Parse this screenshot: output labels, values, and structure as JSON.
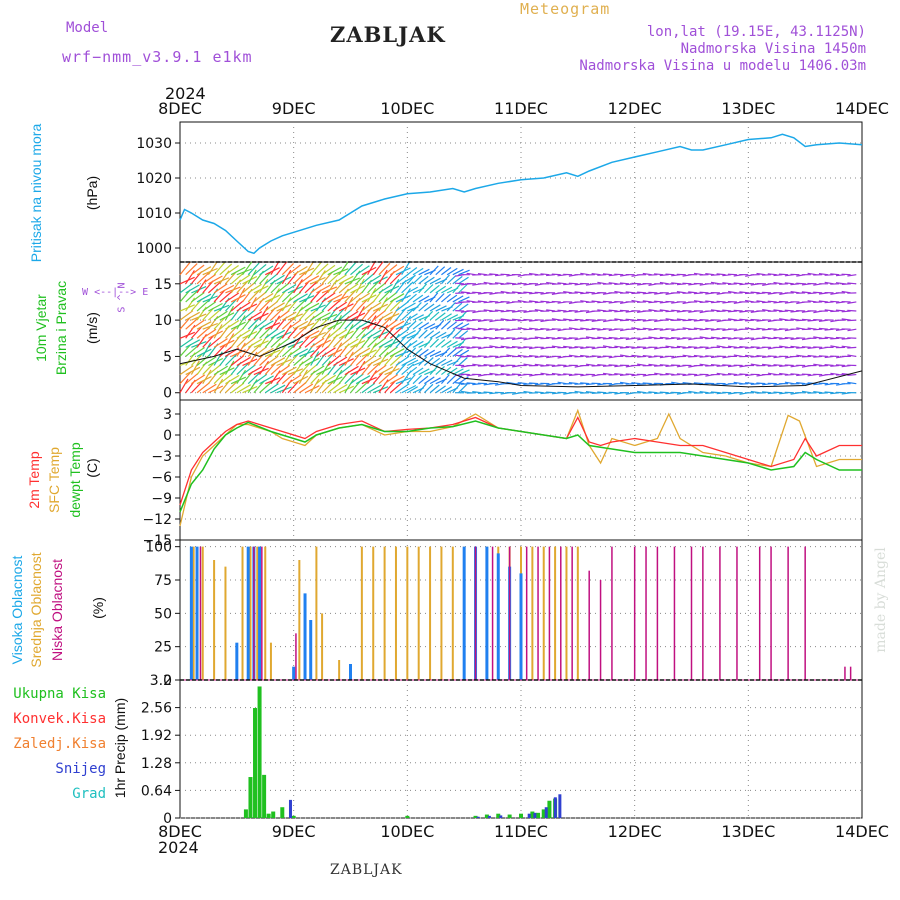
{
  "header": {
    "model_label": "Model",
    "model_name": "wrf−nmm_v3.9.1  e1km",
    "title": "ZABLJAK",
    "meteogram_label": "Meteogram",
    "location": "lon,lat (19.15E, 43.1125N)",
    "altitude": "Nadmorska Visina 1450m",
    "model_altitude": "Nadmorska Visina u modelu 1406.03m",
    "year_top": "2024",
    "year_bottom": "2024",
    "footer_station": "ZABLJAK",
    "watermark": "made by Angel"
  },
  "colors": {
    "pressure": "#1ca8e8",
    "t2m": "#ff3030",
    "tsfc": "#e0a830",
    "dewpt": "#20c020",
    "high_cloud": "#2080f0",
    "mid_cloud": "#e0a830",
    "low_cloud": "#c01080",
    "precip_total": "#20c020",
    "precip_conv": "#ff3030",
    "precip_frz": "#f08030",
    "snow": "#3040d0",
    "graupel": "#20c0c0"
  },
  "chart_data": [
    {
      "type": "line",
      "panel": "pressure",
      "ylabel_main": "Pritisak na nivou mora",
      "ylabel_unit": "(hPa)",
      "x_labels": [
        "8DEC",
        "9DEC",
        "10DEC",
        "11DEC",
        "12DEC",
        "13DEC",
        "14DEC"
      ],
      "yticks": [
        "1000",
        "1010",
        "1020",
        "1030"
      ],
      "ylim": [
        996,
        1036
      ],
      "grid": true,
      "series": [
        {
          "x": [
            0,
            0.04,
            0.1,
            0.2,
            0.3,
            0.4,
            0.5,
            0.6,
            0.65,
            0.7,
            0.8,
            0.9,
            1.0,
            1.2,
            1.4,
            1.6,
            1.8,
            2.0,
            2.2,
            2.4,
            2.5,
            2.6,
            2.8,
            3.0,
            3.2,
            3.4,
            3.5,
            3.6,
            3.8,
            4.0,
            4.2,
            4.4,
            4.5,
            4.6,
            4.8,
            5.0,
            5.2,
            5.3,
            5.4,
            5.5,
            5.6,
            5.8,
            6.0
          ],
          "values": [
            1008,
            1011,
            1010,
            1008,
            1007,
            1005,
            1002,
            999,
            998.5,
            1000,
            1002,
            1003.5,
            1004.5,
            1006.5,
            1008,
            1012,
            1014,
            1015.5,
            1016,
            1017,
            1016,
            1017,
            1018.5,
            1019.5,
            1020,
            1021.5,
            1020.5,
            1022,
            1024.5,
            1026,
            1027.5,
            1029,
            1028,
            1028,
            1029.5,
            1031,
            1031.5,
            1032.5,
            1031.5,
            1029,
            1029.5,
            1030,
            1029.5
          ]
        }
      ]
    },
    {
      "type": "line",
      "panel": "wind",
      "ylabel_main": "10m Vjetar",
      "ylabel_sub": "Brzina i Pravac",
      "ylabel_unit": "(m/s)",
      "direction_legend": [
        "W",
        "<--|-->",
        "E",
        "N",
        "^",
        "S"
      ],
      "yticks": [
        "0",
        "5",
        "10",
        "15"
      ],
      "ylim": [
        -1,
        18
      ],
      "grid": true,
      "series": [
        {
          "name": "speed",
          "x": [
            0,
            0.3,
            0.5,
            0.7,
            1.0,
            1.2,
            1.4,
            1.6,
            1.8,
            2.0,
            2.2,
            2.5,
            2.8,
            3.0,
            3.5,
            4.0,
            4.5,
            5.0,
            5.5,
            6.0
          ],
          "values": [
            4,
            5,
            6,
            5,
            7,
            9,
            10,
            10,
            9,
            6,
            4,
            2,
            1.5,
            1,
            0.8,
            1,
            1.2,
            0.8,
            1,
            3
          ]
        }
      ]
    },
    {
      "type": "line",
      "panel": "temperature",
      "ylabel_main": "2m Temp",
      "ylabel_sub": "SFC Temp",
      "ylabel_sub2": "dewpt Temp",
      "ylabel_unit": "(C)",
      "yticks": [
        "3",
        "0",
        "−3",
        "−6",
        "−9",
        "−12",
        "−15"
      ],
      "ylim": [
        -15,
        5
      ],
      "grid": true,
      "series": [
        {
          "name": "2m Temp",
          "x": [
            0,
            0.1,
            0.2,
            0.3,
            0.4,
            0.5,
            0.6,
            0.8,
            0.9,
            1.0,
            1.1,
            1.2,
            1.4,
            1.6,
            1.8,
            2.0,
            2.2,
            2.4,
            2.6,
            2.8,
            3.0,
            3.2,
            3.4,
            3.5,
            3.6,
            3.7,
            3.8,
            4.0,
            4.2,
            4.4,
            4.6,
            4.8,
            5.0,
            5.2,
            5.4,
            5.5,
            5.6,
            5.8,
            6.0
          ],
          "values": [
            -10,
            -5,
            -2.5,
            -1,
            0.5,
            1.5,
            2,
            1,
            0.5,
            0,
            -0.5,
            0.5,
            1.5,
            2,
            0.5,
            0.8,
            1,
            1.5,
            2.5,
            1,
            0.5,
            0,
            -0.5,
            2.5,
            -1,
            -1.5,
            -1,
            -0.5,
            -1,
            -1.5,
            -1.5,
            -2.5,
            -3.5,
            -4.5,
            -3.5,
            -0.5,
            -3,
            -1.5,
            -1.5
          ]
        },
        {
          "name": "SFC Temp",
          "x": [
            0,
            0.1,
            0.2,
            0.3,
            0.4,
            0.5,
            0.6,
            0.8,
            0.9,
            1.0,
            1.1,
            1.2,
            1.4,
            1.6,
            1.8,
            2.0,
            2.2,
            2.4,
            2.6,
            2.8,
            3.0,
            3.2,
            3.4,
            3.5,
            3.6,
            3.7,
            3.8,
            4.0,
            4.2,
            4.3,
            4.4,
            4.6,
            4.8,
            5.0,
            5.2,
            5.35,
            5.45,
            5.6,
            5.8,
            6.0
          ],
          "values": [
            -13,
            -6,
            -3,
            -1.5,
            0,
            1.5,
            1.5,
            0.5,
            -0.5,
            -1,
            -1.5,
            0,
            1,
            1.5,
            0,
            0.5,
            0.5,
            1.2,
            3,
            1,
            0.5,
            0,
            -0.5,
            3.5,
            -1.5,
            -4,
            -0.5,
            -1.5,
            -0.5,
            3,
            -0.5,
            -2.5,
            -3,
            -4,
            -4.5,
            2.8,
            2,
            -4.5,
            -3.5,
            -3.5
          ]
        },
        {
          "name": "dewpt Temp",
          "x": [
            0,
            0.1,
            0.2,
            0.3,
            0.4,
            0.5,
            0.6,
            0.8,
            0.9,
            1.0,
            1.1,
            1.2,
            1.4,
            1.6,
            1.8,
            2.0,
            2.2,
            2.4,
            2.6,
            2.8,
            3.0,
            3.2,
            3.4,
            3.5,
            3.6,
            3.8,
            4.0,
            4.2,
            4.4,
            4.6,
            4.8,
            5.0,
            5.2,
            5.4,
            5.5,
            5.6,
            5.8,
            6.0
          ],
          "values": [
            -11,
            -7,
            -5,
            -2,
            0,
            1,
            1.8,
            0.5,
            0,
            -0.5,
            -1,
            0,
            1,
            1.5,
            0.5,
            0.5,
            1,
            1.2,
            2,
            1,
            0.5,
            0,
            -0.5,
            0,
            -1.5,
            -2,
            -2.5,
            -2.5,
            -2.5,
            -3,
            -3.5,
            -4,
            -5,
            -4.5,
            -2.5,
            -3.5,
            -5,
            -5
          ]
        }
      ]
    },
    {
      "type": "bar",
      "panel": "clouds",
      "ylabel_main": "Visoka Oblacnost",
      "ylabel_sub": "Srednja Oblacnost",
      "ylabel_sub2": "Niska  Oblacnost",
      "ylabel_unit": "(%)",
      "yticks": [
        "0",
        "25",
        "50",
        "75",
        "100"
      ],
      "ylim": [
        0,
        105
      ],
      "grid": true,
      "series": [
        {
          "name": "high",
          "x": [
            0.1,
            0.15,
            0.5,
            0.6,
            0.65,
            0.7,
            1.0,
            1.1,
            1.15,
            1.5,
            2.5,
            2.6,
            2.7,
            2.8,
            2.9,
            3.0
          ],
          "values": [
            100,
            100,
            28,
            100,
            100,
            100,
            10,
            65,
            45,
            12,
            100,
            100,
            100,
            95,
            85,
            80
          ]
        },
        {
          "name": "mid",
          "x": [
            0.12,
            0.2,
            0.3,
            0.4,
            0.55,
            0.62,
            0.68,
            0.75,
            0.8,
            1.05,
            1.2,
            1.25,
            1.4,
            1.6,
            1.7,
            1.8,
            1.9,
            2.0,
            2.1,
            2.2,
            2.3,
            2.4,
            2.5,
            2.6,
            2.7,
            2.8,
            2.9,
            3.0,
            3.1,
            3.2,
            3.3,
            3.4,
            3.5
          ],
          "values": [
            100,
            100,
            90,
            85,
            100,
            100,
            100,
            100,
            28,
            90,
            100,
            50,
            15,
            100,
            100,
            100,
            100,
            100,
            100,
            100,
            100,
            100,
            100,
            100,
            100,
            100,
            100,
            100,
            100,
            100,
            100,
            100,
            100
          ]
        },
        {
          "name": "low",
          "x": [
            0.18,
            0.65,
            0.72,
            1.02,
            2.6,
            2.75,
            2.9,
            3.05,
            3.15,
            3.25,
            3.35,
            3.45,
            3.6,
            3.7,
            3.8,
            4.0,
            4.1,
            4.2,
            4.35,
            4.5,
            4.6,
            4.75,
            4.9,
            5.1,
            5.2,
            5.35,
            5.5,
            5.85,
            5.9
          ],
          "values": [
            100,
            100,
            100,
            35,
            100,
            100,
            100,
            100,
            100,
            100,
            100,
            100,
            82,
            75,
            100,
            100,
            100,
            100,
            100,
            100,
            100,
            100,
            100,
            100,
            100,
            100,
            100,
            10,
            10
          ]
        }
      ]
    },
    {
      "type": "bar",
      "panel": "precip",
      "ylabel_main": "1hr Precip (mm)",
      "legend": [
        "Ukupna Kisa",
        "Konvek.Kisa",
        "Zaledj.Kisa",
        "Snijeg",
        "Grad"
      ],
      "yticks": [
        "0",
        "0.64",
        "1.28",
        "1.92",
        "2.56",
        "3.2"
      ],
      "ylim": [
        0,
        3.2
      ],
      "grid": true,
      "series": [
        {
          "name": "Ukupna Kisa",
          "x": [
            0.58,
            0.62,
            0.66,
            0.7,
            0.74,
            0.78,
            0.82,
            0.9,
            1.0,
            2.0,
            2.6,
            2.7,
            2.8,
            2.9,
            3.0,
            3.1,
            3.15,
            3.2,
            3.25,
            3.3
          ],
          "values": [
            0.2,
            0.95,
            2.55,
            3.05,
            1.0,
            0.1,
            0.15,
            0.25,
            0.05,
            0.05,
            0.05,
            0.08,
            0.1,
            0.08,
            0.1,
            0.15,
            0.12,
            0.2,
            0.4,
            0.45
          ]
        },
        {
          "name": "Snijeg",
          "x": [
            0.95,
            2.6,
            2.7,
            2.8,
            3.05,
            3.1,
            3.2,
            3.28,
            3.32
          ],
          "values": [
            0.42,
            0.03,
            0.05,
            0.06,
            0.1,
            0.12,
            0.25,
            0.48,
            0.55
          ]
        }
      ]
    }
  ]
}
